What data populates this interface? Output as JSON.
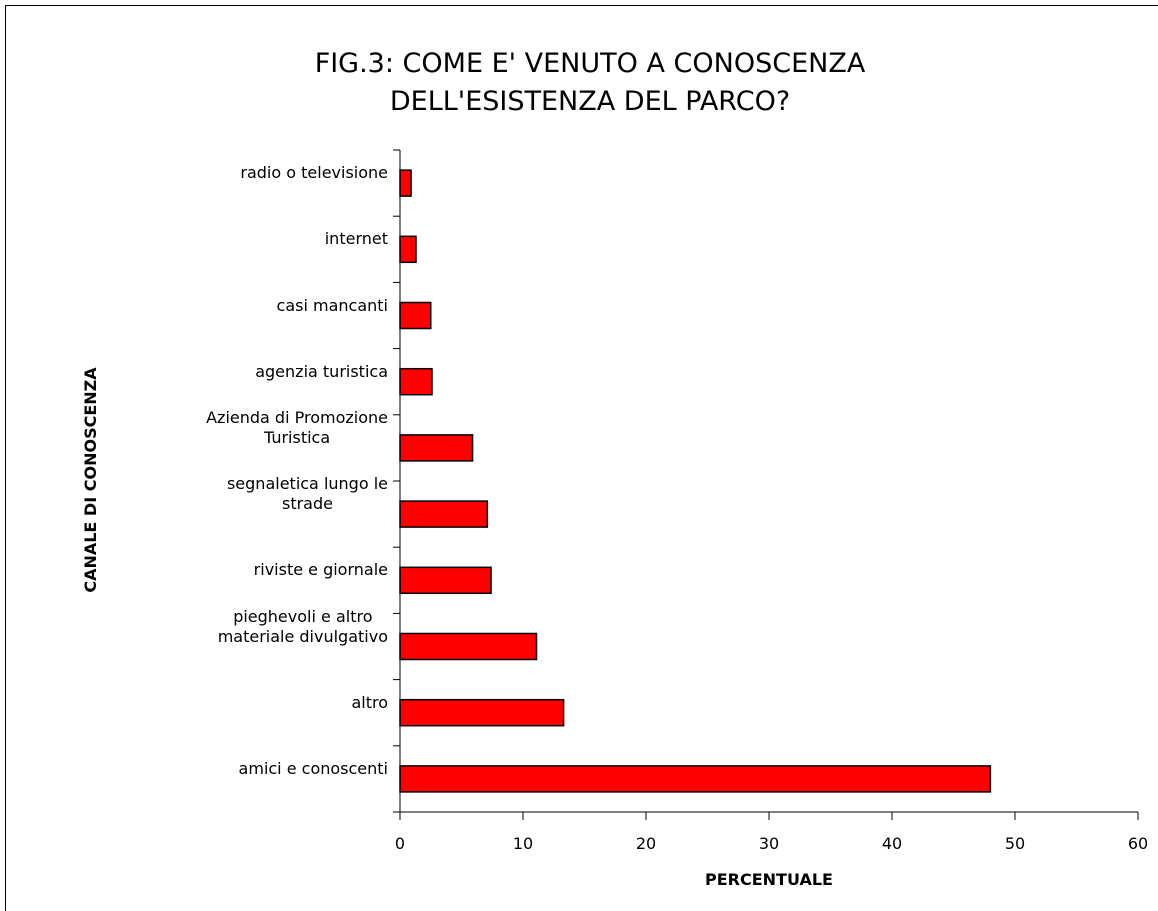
{
  "chart_data": {
    "type": "bar",
    "orientation": "horizontal",
    "title": [
      "FIG.3: COME E' VENUTO A CONOSCENZA",
      "DELL'ESISTENZA DEL PARCO?"
    ],
    "x_label": "PERCENTUALE",
    "y_label": "CANALE DI CONOSCENZA",
    "categories": [
      "radio o televisione",
      "internet",
      "casi mancanti",
      "agenzia turistica",
      "Azienda di Promozione\nTuristica",
      "segnaletica lungo le\nstrade",
      "riviste e giornale",
      "pieghevoli e altro\nmateriale divulgativo",
      "altro",
      "amici e conoscenti"
    ],
    "values": [
      0.9,
      1.3,
      2.5,
      2.6,
      5.9,
      7.1,
      7.4,
      11.1,
      13.3,
      48.0
    ],
    "color": "#ff0000",
    "xlim": [
      0,
      60
    ],
    "xticks": [
      0,
      10,
      20,
      30,
      40,
      50,
      60
    ],
    "grid": false
  }
}
